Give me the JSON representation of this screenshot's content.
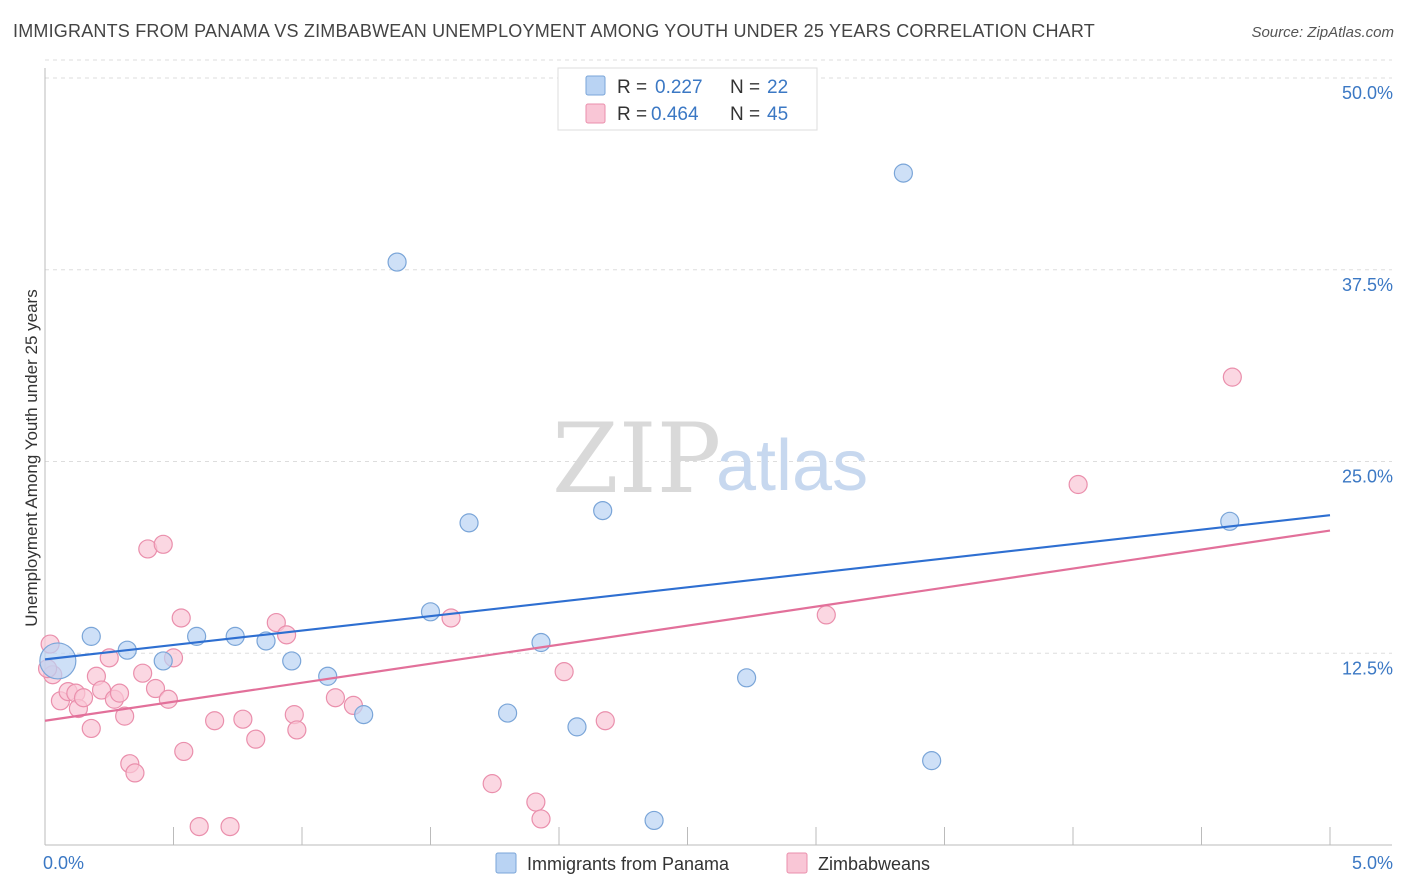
{
  "header": {
    "title": "IMMIGRANTS FROM PANAMA VS ZIMBABWEAN UNEMPLOYMENT AMONG YOUTH UNDER 25 YEARS CORRELATION CHART",
    "source": "Source: ZipAtlas.com"
  },
  "watermark": {
    "zip": "ZIP",
    "atlas": "atlas"
  },
  "legend": {
    "rows": [
      {
        "r_label": "R = ",
        "r_value": "0.227",
        "n_label": "N = ",
        "n_value": "22"
      },
      {
        "r_label": "R = ",
        "r_value": "0.464",
        "n_label": "N = ",
        "n_value": "45"
      }
    ]
  },
  "bottom_legend": {
    "series1": "Immigrants from Panama",
    "series2": "Zimbabweans"
  },
  "colors": {
    "blue_fill": "#b9d3f3",
    "blue_stroke": "#7aa5d8",
    "blue_line": "#2e6fd1",
    "pink_fill": "#f9c6d6",
    "pink_stroke": "#ea8fac",
    "pink_line": "#e2709a",
    "grid": "#dddddd",
    "axis": "#bbbbbb"
  },
  "chart_data": {
    "type": "scatter",
    "title": "IMMIGRANTS FROM PANAMA VS ZIMBABWEAN UNEMPLOYMENT AMONG YOUTH UNDER 25 YEARS CORRELATION CHART",
    "xlabel": "",
    "ylabel": "Unemployment Among Youth under 25 years",
    "xlim": [
      0,
      5
    ],
    "ylim": [
      0,
      50
    ],
    "x_tick_labels": [
      "0.0%",
      "5.0%"
    ],
    "y_tick_labels": [
      "12.5%",
      "25.0%",
      "37.5%",
      "50.0%"
    ],
    "y_tick_values": [
      12.5,
      25,
      37.5,
      50
    ],
    "series": [
      {
        "name": "Immigrants from Panama",
        "color": "blue",
        "trend": {
          "x": [
            0,
            5
          ],
          "y": [
            12.1,
            21.5
          ]
        },
        "points": [
          {
            "x": 0.05,
            "y": 12.0,
            "big": true
          },
          {
            "x": 0.18,
            "y": 13.6
          },
          {
            "x": 0.32,
            "y": 12.7
          },
          {
            "x": 0.46,
            "y": 12.0
          },
          {
            "x": 0.59,
            "y": 13.6
          },
          {
            "x": 0.74,
            "y": 13.6
          },
          {
            "x": 0.86,
            "y": 13.3
          },
          {
            "x": 0.96,
            "y": 12.0
          },
          {
            "x": 1.1,
            "y": 11.0
          },
          {
            "x": 1.24,
            "y": 8.5
          },
          {
            "x": 1.37,
            "y": 38.0
          },
          {
            "x": 1.5,
            "y": 15.2
          },
          {
            "x": 1.65,
            "y": 21.0
          },
          {
            "x": 1.8,
            "y": 8.6
          },
          {
            "x": 1.93,
            "y": 13.2
          },
          {
            "x": 2.07,
            "y": 7.7
          },
          {
            "x": 2.17,
            "y": 21.8
          },
          {
            "x": 2.37,
            "y": 1.6
          },
          {
            "x": 2.73,
            "y": 10.9
          },
          {
            "x": 3.34,
            "y": 43.8
          },
          {
            "x": 3.45,
            "y": 5.5
          },
          {
            "x": 4.61,
            "y": 21.1
          }
        ]
      },
      {
        "name": "Zimbabweans",
        "color": "pink",
        "trend": {
          "x": [
            0,
            5
          ],
          "y": [
            8.1,
            20.5
          ]
        },
        "points": [
          {
            "x": 0.02,
            "y": 13.1
          },
          {
            "x": 0.03,
            "y": 11.1
          },
          {
            "x": 0.06,
            "y": 9.4
          },
          {
            "x": 0.09,
            "y": 10.0
          },
          {
            "x": 0.12,
            "y": 9.9
          },
          {
            "x": 0.13,
            "y": 8.9
          },
          {
            "x": 0.15,
            "y": 9.6
          },
          {
            "x": 0.18,
            "y": 7.6
          },
          {
            "x": 0.2,
            "y": 11.0
          },
          {
            "x": 0.22,
            "y": 10.1
          },
          {
            "x": 0.25,
            "y": 12.2
          },
          {
            "x": 0.27,
            "y": 9.5
          },
          {
            "x": 0.29,
            "y": 9.9
          },
          {
            "x": 0.31,
            "y": 8.4
          },
          {
            "x": 0.33,
            "y": 5.3
          },
          {
            "x": 0.35,
            "y": 4.7
          },
          {
            "x": 0.38,
            "y": 11.2
          },
          {
            "x": 0.4,
            "y": 19.3
          },
          {
            "x": 0.43,
            "y": 10.2
          },
          {
            "x": 0.46,
            "y": 19.6
          },
          {
            "x": 0.48,
            "y": 9.5
          },
          {
            "x": 0.5,
            "y": 12.2
          },
          {
            "x": 0.53,
            "y": 14.8
          },
          {
            "x": 0.54,
            "y": 6.1
          },
          {
            "x": 0.6,
            "y": 1.2
          },
          {
            "x": 0.66,
            "y": 8.1
          },
          {
            "x": 0.72,
            "y": 1.2
          },
          {
            "x": 0.77,
            "y": 8.2
          },
          {
            "x": 0.82,
            "y": 6.9
          },
          {
            "x": 0.9,
            "y": 14.5
          },
          {
            "x": 0.94,
            "y": 13.7
          },
          {
            "x": 0.97,
            "y": 8.5
          },
          {
            "x": 0.98,
            "y": 7.5
          },
          {
            "x": 1.13,
            "y": 9.6
          },
          {
            "x": 1.2,
            "y": 9.1
          },
          {
            "x": 1.58,
            "y": 14.8
          },
          {
            "x": 1.74,
            "y": 4.0
          },
          {
            "x": 1.91,
            "y": 2.8
          },
          {
            "x": 1.93,
            "y": 1.7
          },
          {
            "x": 2.02,
            "y": 11.3
          },
          {
            "x": 2.18,
            "y": 8.1
          },
          {
            "x": 3.04,
            "y": 15.0
          },
          {
            "x": 4.02,
            "y": 23.5
          },
          {
            "x": 4.62,
            "y": 30.5
          },
          {
            "x": 0.01,
            "y": 11.5
          }
        ]
      }
    ]
  },
  "axis_label": "Unemployment Among Youth under 25 years"
}
